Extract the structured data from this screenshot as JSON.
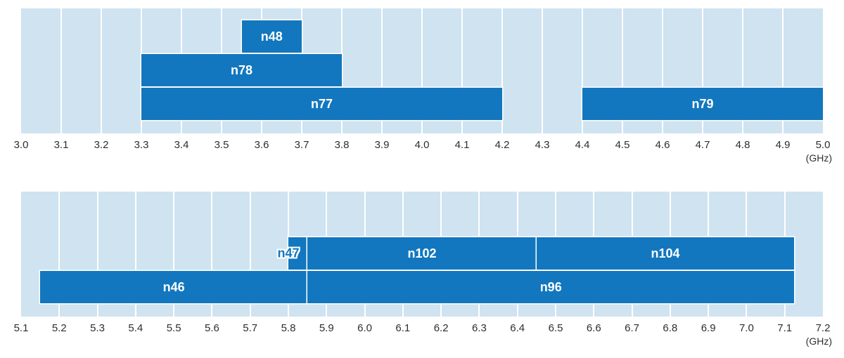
{
  "colors": {
    "band_fill": "#1277BE",
    "band_border": "#FFFFFF",
    "band_label_text": "#FFFFFF",
    "band_label_outlined_text": "#1277BE",
    "plot_bg": "#CFE3F1",
    "gridline": "#FFFFFF",
    "axis_text": "#2E2E2E"
  },
  "chart_data": [
    {
      "type": "band-range",
      "title": "",
      "axis": {
        "min": 3.0,
        "max": 5.0,
        "tick_step": 0.1,
        "unit": "(GHz)",
        "tick_labels": [
          "3.0",
          "3.1",
          "3.2",
          "3.3",
          "3.4",
          "3.5",
          "3.6",
          "3.7",
          "3.8",
          "3.9",
          "4.0",
          "4.1",
          "4.2",
          "4.3",
          "4.4",
          "4.5",
          "4.6",
          "4.7",
          "4.8",
          "4.9",
          "5.0"
        ]
      },
      "bands": [
        {
          "label": "n48",
          "start": 3.55,
          "end": 3.7,
          "row": 0
        },
        {
          "label": "n78",
          "start": 3.3,
          "end": 3.8,
          "row": 1
        },
        {
          "label": "n77",
          "start": 3.3,
          "end": 4.2,
          "row": 2
        },
        {
          "label": "n79",
          "start": 4.4,
          "end": 5.0,
          "row": 2
        }
      ]
    },
    {
      "type": "band-range",
      "title": "",
      "axis": {
        "min": 5.1,
        "max": 7.2,
        "tick_step": 0.1,
        "unit": "(GHz)",
        "tick_labels": [
          "5.1",
          "5.2",
          "5.3",
          "5.4",
          "5.5",
          "5.6",
          "5.7",
          "5.8",
          "5.9",
          "6.0",
          "6.1",
          "6.2",
          "6.3",
          "6.4",
          "6.5",
          "6.6",
          "6.7",
          "6.8",
          "6.9",
          "7.0",
          "7.1",
          "7.2"
        ]
      },
      "bands": [
        {
          "label": "n47",
          "start": 5.8,
          "end": 5.85,
          "row": 0,
          "label_placement": "outside-left"
        },
        {
          "label": "n102",
          "start": 5.85,
          "end": 6.45,
          "row": 0
        },
        {
          "label": "n104",
          "start": 6.45,
          "end": 7.125,
          "row": 0
        },
        {
          "label": "n46",
          "start": 5.15,
          "end": 5.85,
          "row": 1
        },
        {
          "label": "n96",
          "start": 5.85,
          "end": 7.125,
          "row": 1
        }
      ]
    }
  ]
}
